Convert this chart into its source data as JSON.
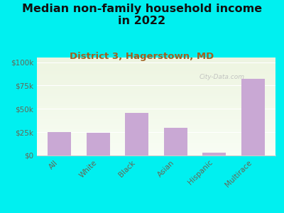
{
  "categories": [
    "All",
    "White",
    "Black",
    "Asian",
    "Hispanic",
    "Multirace"
  ],
  "values": [
    25000,
    24000,
    46000,
    30000,
    3000,
    82000
  ],
  "bar_color": "#c9a8d4",
  "title": "Median non-family household income\nin 2022",
  "subtitle": "District 3, Hagerstown, MD",
  "title_fontsize": 11.5,
  "subtitle_fontsize": 9.5,
  "yticks": [
    0,
    25000,
    50000,
    75000,
    100000
  ],
  "ytick_labels": [
    "$0",
    "$25k",
    "$50k",
    "$75k",
    "$100k"
  ],
  "ylim": [
    0,
    105000
  ],
  "background_color": "#00F0F0",
  "plot_bg_top": "#edf4e0",
  "plot_bg_bottom": "#f8fdf4",
  "title_color": "#111111",
  "subtitle_color": "#a06020",
  "tick_label_color": "#666655",
  "watermark_text": "City-Data.com",
  "watermark_color": "#bbbbbb"
}
